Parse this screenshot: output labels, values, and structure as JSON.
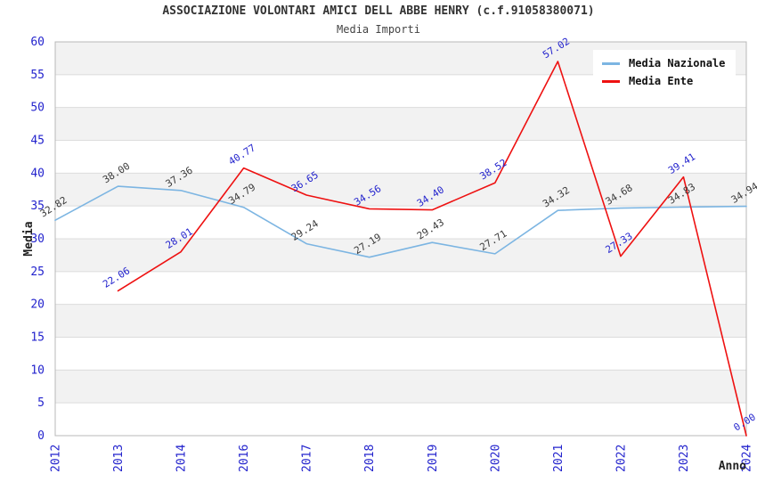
{
  "chart_data": {
    "type": "line",
    "title": "ASSOCIAZIONE VOLONTARI AMICI DELL ABBE HENRY (c.f.91058380071)",
    "subtitle": "Media Importi",
    "xlabel": "Anno",
    "ylabel": "Media",
    "x": [
      "2012",
      "2013",
      "2014",
      "2016",
      "2017",
      "2018",
      "2019",
      "2020",
      "2021",
      "2022",
      "2023",
      "2024"
    ],
    "ylim": [
      0,
      60
    ],
    "ytick_step": 5,
    "y_ticks": [
      0,
      5,
      10,
      15,
      20,
      25,
      30,
      35,
      40,
      45,
      50,
      55,
      60
    ],
    "grid": "horizontal-bands",
    "legend_position": "top-right",
    "series": [
      {
        "name": "Media Nazionale",
        "color": "#7CB5E2",
        "label_color": "#3A3A3A",
        "values": [
          32.82,
          38.0,
          37.36,
          34.79,
          29.24,
          27.19,
          29.43,
          27.71,
          34.32,
          34.68,
          34.83,
          34.94
        ]
      },
      {
        "name": "Media Ente",
        "color": "#EE1111",
        "label_color": "#2323CD",
        "values": [
          null,
          22.06,
          28.01,
          40.77,
          36.65,
          34.56,
          34.4,
          38.52,
          57.02,
          27.33,
          39.41,
          0.0
        ]
      }
    ],
    "style": {
      "band_color": "#F2F2F2",
      "band_alt_color": "#FFFFFF",
      "gridline_color": "#DCDCDC",
      "border_color": "#B8B8B8",
      "tick_label_color": "#2323CD",
      "axis_title_color": "#222222"
    }
  }
}
